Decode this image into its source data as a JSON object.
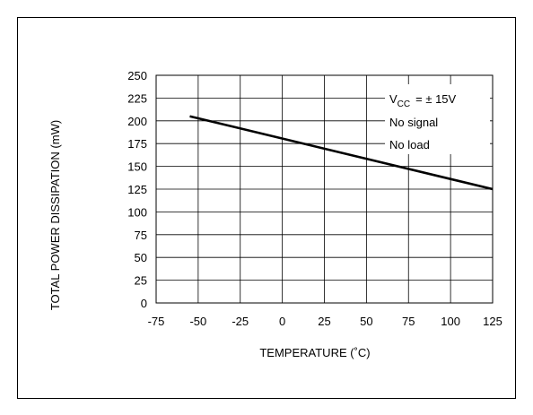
{
  "chart_data": {
    "type": "line",
    "xlabel": "TEMPERATURE (˚C)",
    "ylabel": "TOTAL POWER DISSIPATION (mW)",
    "xlim": [
      -75,
      125
    ],
    "ylim": [
      0,
      250
    ],
    "x_ticks": [
      -75,
      -50,
      -25,
      0,
      25,
      50,
      75,
      100,
      125
    ],
    "y_ticks": [
      0,
      25,
      50,
      75,
      100,
      125,
      150,
      175,
      200,
      225,
      250
    ],
    "x_tick_labels": [
      "-75",
      "-50",
      "-25",
      "0",
      "25",
      "50",
      "75",
      "100",
      "125"
    ],
    "y_tick_labels": [
      "0",
      "25",
      "50",
      "75",
      "100",
      "125",
      "150",
      "175",
      "200",
      "225",
      "250"
    ],
    "grid": true,
    "series": [
      {
        "x": [
          -55,
          125
        ],
        "y": [
          205,
          125
        ]
      }
    ],
    "annotations": {
      "vcc_prefix": "V",
      "vcc_subscript": "CC",
      "vcc_value": "= ± 15V",
      "line2": "No signal",
      "line3": "No load"
    },
    "line_color": "#000000",
    "grid_color": "#000000"
  }
}
